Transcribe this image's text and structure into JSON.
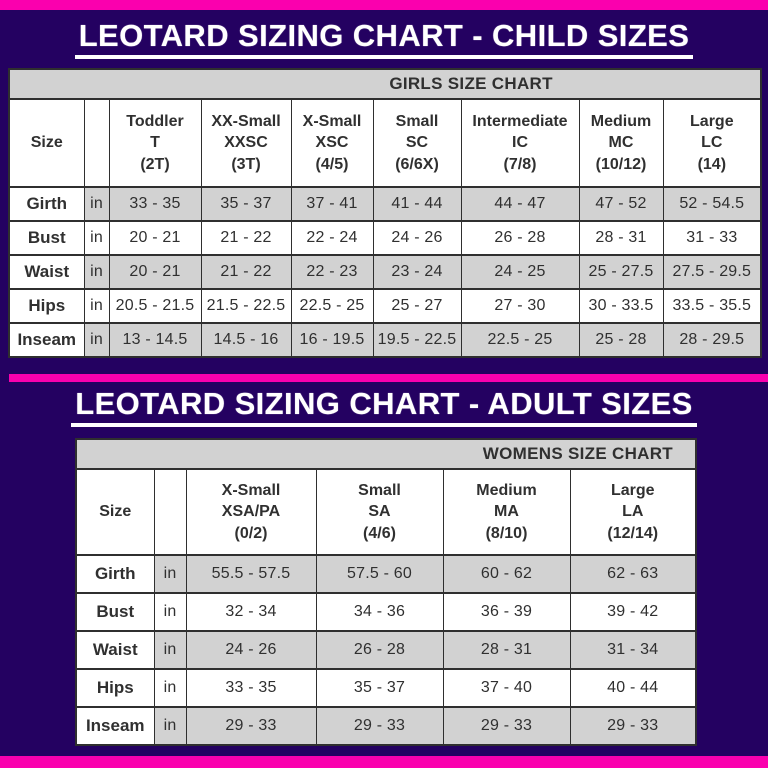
{
  "theme": {
    "background": "#240161",
    "accent_pink": "#FA00AE",
    "band_gray": "#D2D2D2",
    "cell_white": "#FFFFFF",
    "text_dark": "#303030"
  },
  "child_section": {
    "title": "LEOTARD SIZING CHART - CHILD SIZES",
    "table": {
      "banner": "GIRLS SIZE CHART",
      "corner_label": "Size",
      "columns": [
        {
          "name": "Toddler",
          "code": "T",
          "range": "(2T)"
        },
        {
          "name": "XX-Small",
          "code": "XXSC",
          "range": "(3T)"
        },
        {
          "name": "X-Small",
          "code": "XSC",
          "range": "(4/5)"
        },
        {
          "name": "Small",
          "code": "SC",
          "range": "(6/6X)"
        },
        {
          "name": "Intermediate",
          "code": "IC",
          "range": "(7/8)"
        },
        {
          "name": "Medium",
          "code": "MC",
          "range": "(10/12)"
        },
        {
          "name": "Large",
          "code": "LC",
          "range": "(14)"
        }
      ],
      "rows": [
        {
          "label": "Girth",
          "unit": "in",
          "values": [
            "33 - 35",
            "35 - 37",
            "37 - 41",
            "41 - 44",
            "44 - 47",
            "47 - 52",
            "52 - 54.5"
          ]
        },
        {
          "label": "Bust",
          "unit": "in",
          "values": [
            "20 - 21",
            "21 - 22",
            "22 - 24",
            "24 - 26",
            "26 - 28",
            "28 - 31",
            "31 - 33"
          ]
        },
        {
          "label": "Waist",
          "unit": "in",
          "values": [
            "20 - 21",
            "21 - 22",
            "22 - 23",
            "23 - 24",
            "24 - 25",
            "25 - 27.5",
            "27.5 - 29.5"
          ]
        },
        {
          "label": "Hips",
          "unit": "in",
          "values": [
            "20.5 - 21.5",
            "21.5 - 22.5",
            "22.5 - 25",
            "25 - 27",
            "27 - 30",
            "30 - 33.5",
            "33.5 - 35.5"
          ]
        },
        {
          "label": "Inseam",
          "unit": "in",
          "values": [
            "13 - 14.5",
            "14.5 - 16",
            "16 - 19.5",
            "19.5 - 22.5",
            "22.5 - 25",
            "25 - 28",
            "28 - 29.5"
          ]
        }
      ]
    }
  },
  "adult_section": {
    "title": "LEOTARD SIZING CHART - ADULT SIZES",
    "table": {
      "banner": "WOMENS SIZE CHART",
      "corner_label": "Size",
      "columns": [
        {
          "name": "X-Small",
          "code": "XSA/PA",
          "range": "(0/2)"
        },
        {
          "name": "Small",
          "code": "SA",
          "range": "(4/6)"
        },
        {
          "name": "Medium",
          "code": "MA",
          "range": "(8/10)"
        },
        {
          "name": "Large",
          "code": "LA",
          "range": "(12/14)"
        }
      ],
      "rows": [
        {
          "label": "Girth",
          "unit": "in",
          "values": [
            "55.5 - 57.5",
            "57.5 - 60",
            "60 - 62",
            "62 - 63"
          ]
        },
        {
          "label": "Bust",
          "unit": "in",
          "values": [
            "32 - 34",
            "34 - 36",
            "36 - 39",
            "39 - 42"
          ]
        },
        {
          "label": "Waist",
          "unit": "in",
          "values": [
            "24 - 26",
            "26 - 28",
            "28 - 31",
            "31 - 34"
          ]
        },
        {
          "label": "Hips",
          "unit": "in",
          "values": [
            "33 - 35",
            "35 - 37",
            "37 - 40",
            "40 - 44"
          ]
        },
        {
          "label": "Inseam",
          "unit": "in",
          "values": [
            "29 - 33",
            "29 - 33",
            "29 - 33",
            "29 - 33"
          ]
        }
      ]
    }
  }
}
